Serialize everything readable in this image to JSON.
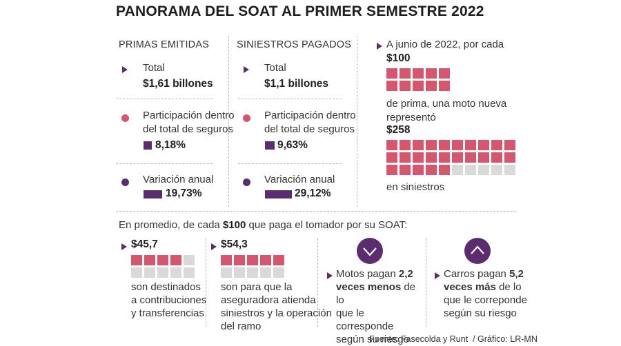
{
  "title": "PANORAMA DEL SOAT AL PRIMER SEMESTRE 2022",
  "primas": {
    "header": "PRIMAS EMITIDAS",
    "total_label": "Total",
    "total_value": "$1,61 billones",
    "part_label_1": "Participación dentro",
    "part_label_2": "del total de seguros",
    "part_value": "8,18%",
    "var_label": "Variación anual",
    "var_value": "19,73%"
  },
  "siniestros": {
    "header": "SINIESTROS PAGADOS",
    "total_label": "Total",
    "total_value": "$1,1 billones",
    "part_label_1": "Participación dentro",
    "part_label_2": "del total de seguros",
    "part_value": "9,63%",
    "var_label": "Variación anual",
    "var_value": "29,12%"
  },
  "moto": {
    "intro": "A junio de 2022, por cada",
    "amount1": "$100",
    "text_1": "de prima, una moto nueva",
    "text_2": "representó",
    "amount2": "$258",
    "text_3": "en siniestros"
  },
  "bottom": {
    "intro_pre": "En promedio, de cada ",
    "intro_amount": "$100",
    "intro_post": " que paga el tomador por su SOAT:",
    "c1": {
      "amount": "$45,7",
      "line1": "son destinados",
      "line2": "a contribuciones",
      "line3": "y transferencias"
    },
    "c2": {
      "amount": "$54,3",
      "line1": "son para que la",
      "line2": "aseguradora atienda",
      "line3": "siniestros y la operación",
      "line4": "del ramo"
    },
    "c3": {
      "pre": "Motos pagan ",
      "bold1": "2,2",
      "bold2": "veces menos",
      "post": " de lo",
      "line3": "que le corresponde",
      "line4": "según su riesgo"
    },
    "c4": {
      "pre": "Carros pagan ",
      "bold1": "5,2",
      "bold2": "veces más",
      "post": " de lo",
      "line3": "que le correponde",
      "line4": "según su riesgo"
    }
  },
  "source": "Fuente: Fasecolda y Runt  / Gráfico: LR-MN",
  "colors": {
    "purple": "#5b2d6e",
    "pink": "#d6566e",
    "gray": "#d9d9d9"
  },
  "icons": {
    "down": "chevron-down-icon",
    "up": "chevron-up-icon"
  }
}
